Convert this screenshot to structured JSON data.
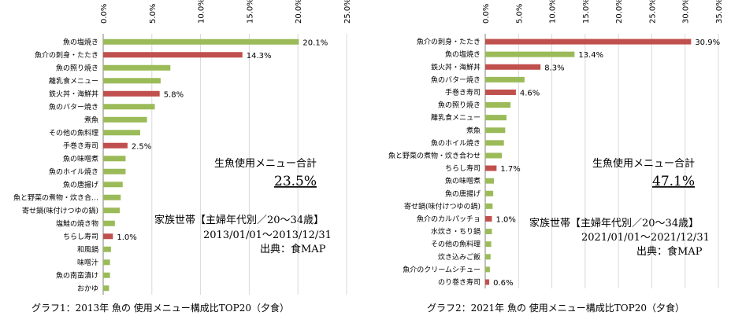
{
  "colors": {
    "green": "#9bbb59",
    "red": "#c0504d",
    "total_text": "#ff0000",
    "grid": "#d9d9d9"
  },
  "chart_data": [
    {
      "type": "bar",
      "orientation": "horizontal",
      "xlim": [
        0,
        25
      ],
      "ticks": [
        "0.0%",
        "5.0%",
        "10.0%",
        "15.0%",
        "20.0%",
        "25.0%"
      ],
      "categories": [
        "魚の塩焼き",
        "魚介の刺身・たたき",
        "魚の照り焼き",
        "離乳食メニュー",
        "鉄火丼・海鮮丼",
        "魚のバター焼き",
        "煮魚",
        "その他の魚料理",
        "手巻き寿司",
        "魚の味噌煮",
        "魚のホイル焼き",
        "魚の唐揚げ",
        "魚と野菜の煮物・炊き合…",
        "寄せ鍋(味付けつゆの鍋)",
        "塩鮭の焼き物",
        "ちらし寿司",
        "和風鍋",
        "味噌汁",
        "魚の南蛮漬け",
        "おかゆ"
      ],
      "values": [
        20.1,
        14.3,
        6.9,
        5.9,
        5.8,
        5.3,
        4.5,
        3.8,
        2.5,
        2.3,
        2.3,
        2.0,
        1.8,
        1.7,
        1.2,
        1.0,
        0.8,
        0.7,
        0.7,
        0.6
      ],
      "highlight": [
        false,
        true,
        false,
        false,
        true,
        false,
        false,
        false,
        true,
        false,
        false,
        false,
        false,
        false,
        false,
        true,
        false,
        false,
        false,
        false
      ],
      "data_labels": [
        "20.1%",
        "14.3%",
        "",
        "",
        "5.8%",
        "",
        "",
        "",
        "2.5%",
        "",
        "",
        "",
        "",
        "",
        "",
        "1.0%",
        "",
        "",
        "",
        ""
      ],
      "annotation": {
        "total_label": "生魚使用メニュー合計",
        "total_value": "23.5%",
        "household": "家族世帯【主婦年代別／20～34歳】",
        "period": "2013/01/01～2013/12/31",
        "source": "出典：食MAP"
      },
      "caption": "グラフ1：2013年 魚の 使用メニュー構成比TOP20（夕食）"
    },
    {
      "type": "bar",
      "orientation": "horizontal",
      "xlim": [
        0,
        35
      ],
      "ticks": [
        "0.0%",
        "5.0%",
        "10.0%",
        "15.0%",
        "20.0%",
        "25.0%",
        "30.0%",
        "35.0%"
      ],
      "categories": [
        "魚介の刺身・たたき",
        "魚の塩焼き",
        "鉄火丼・海鮮丼",
        "魚のバター焼き",
        "手巻き寿司",
        "魚の照り焼き",
        "離乳食メニュー",
        "煮魚",
        "魚のホイル焼き",
        "魚と野菜の煮物・炊き合わせ",
        "ちらし寿司",
        "魚の味噌煮",
        "魚の唐揚げ",
        "寄せ鍋(味付けつゆの鍋)",
        "魚介のカルパッチョ",
        "水炊き・ちり鍋",
        "その他の魚料理",
        "炊き込みご飯",
        "魚介のクリームシチュー",
        "のり巻き寿司"
      ],
      "values": [
        30.9,
        13.4,
        8.3,
        5.9,
        4.6,
        3.8,
        3.2,
        3.0,
        2.8,
        2.5,
        1.7,
        1.3,
        1.2,
        1.1,
        1.0,
        1.0,
        0.9,
        0.8,
        0.7,
        0.6
      ],
      "highlight": [
        true,
        false,
        true,
        false,
        true,
        false,
        false,
        false,
        false,
        false,
        true,
        false,
        false,
        false,
        true,
        false,
        false,
        false,
        false,
        true
      ],
      "data_labels": [
        "30.9%",
        "13.4%",
        "8.3%",
        "",
        "4.6%",
        "",
        "",
        "",
        "",
        "",
        "1.7%",
        "",
        "",
        "",
        "1.0%",
        "",
        "",
        "",
        "",
        "0.6%"
      ],
      "annotation": {
        "total_label": "生魚使用メニュー合計",
        "total_value": "47.1%",
        "household": "家族世帯【主婦年代別／20～34歳】",
        "period": "2021/01/01～2021/12/31",
        "source": "出典：食MAP"
      },
      "caption": "グラフ2：2021年 魚の 使用メニュー構成比TOP20（夕食）"
    }
  ]
}
